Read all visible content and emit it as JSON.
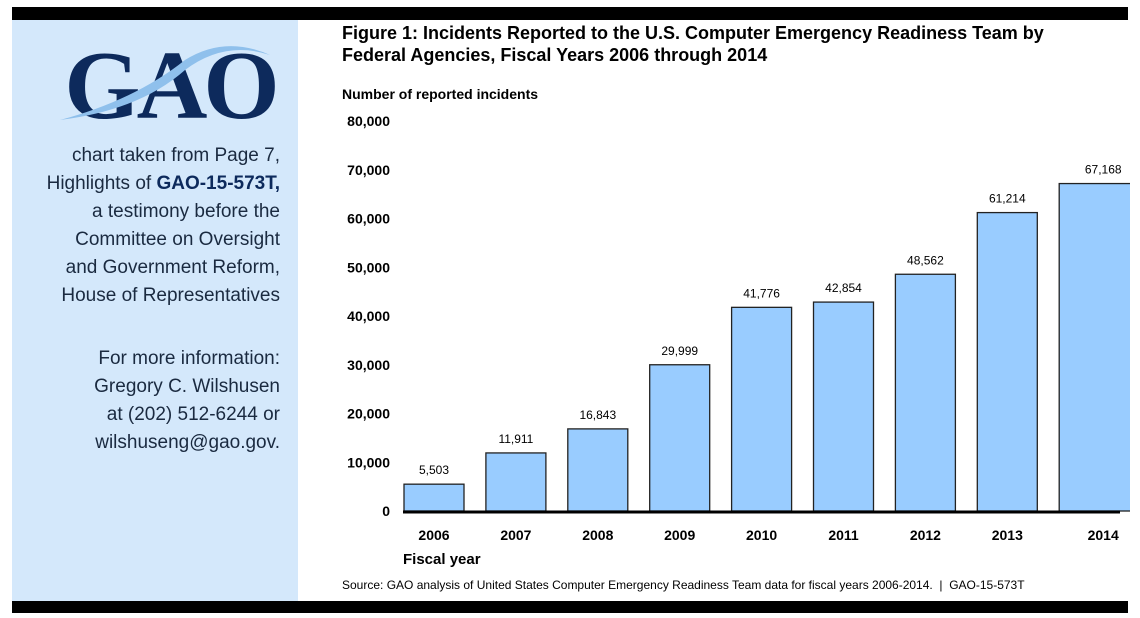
{
  "sidebar": {
    "logo_text": "GAO",
    "line1": "chart taken from Page 7,",
    "line2_prefix": "Highlights of ",
    "line2_report": "GAO-15-573T,",
    "line3": "a testimony before the",
    "line4": "Committee on Oversight",
    "line5": "and Government Reform,",
    "line6": "House of Representatives",
    "contact1": "For more information:",
    "contact2": "Gregory C. Wilshusen",
    "contact3": "at (202) 512-6244 or",
    "contact4": "wilshuseng@gao.gov."
  },
  "chart_data": {
    "type": "bar",
    "title_line1": "Figure 1: Incidents Reported to the U.S. Computer Emergency Readiness Team by",
    "title_line2": "Federal Agencies, Fiscal Years 2006 through 2014",
    "ylabel": "Number of reported incidents",
    "xlabel": "Fiscal year",
    "categories": [
      "2006",
      "2007",
      "2008",
      "2009",
      "2010",
      "2011",
      "2012",
      "2013",
      "2014"
    ],
    "values": [
      5503,
      11911,
      16843,
      29999,
      41776,
      42854,
      48562,
      61214,
      67168
    ],
    "data_labels": [
      "5,503",
      "11,911",
      "16,843",
      "29,999",
      "41,776",
      "42,854",
      "48,562",
      "61,214",
      "67,168"
    ],
    "yticks": [
      "0",
      "10,000",
      "20,000",
      "30,000",
      "40,000",
      "50,000",
      "60,000",
      "70,000",
      "80,000"
    ],
    "ylim": [
      0,
      80000
    ],
    "grid": false,
    "bar_color": "#99ccff",
    "source": "Source: GAO analysis of United States Computer Emergency Readiness Team data for fiscal years 2006-2014.  |  GAO-15-573T"
  }
}
